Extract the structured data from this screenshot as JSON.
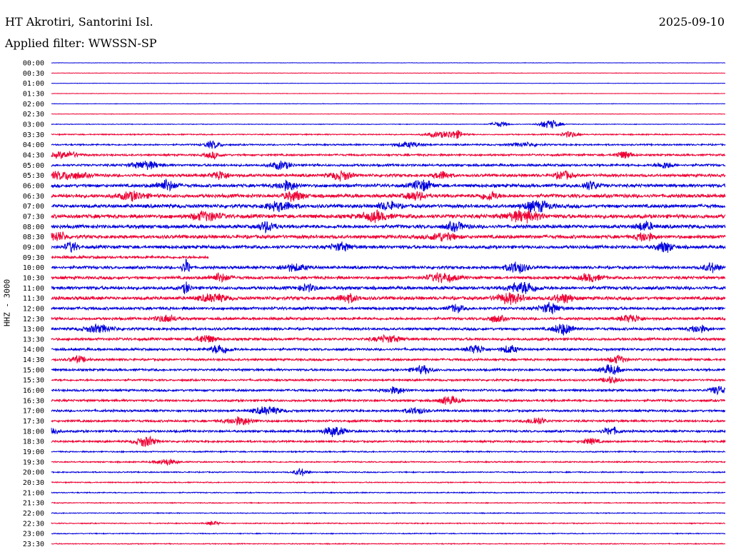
{
  "header": {
    "station": "HT Akrotiri, Santorini Isl.",
    "date": "2025-09-10",
    "filter": "Applied filter: WWSSN-SP"
  },
  "channel_label": "HHZ - 3000",
  "chart_data": {
    "type": "line",
    "title": "HT Akrotiri, Santorini Isl.",
    "ylabel": "HHZ - 3000",
    "colors": [
      "#0000dd",
      "#ee0033"
    ],
    "gap": {
      "start": "09:37",
      "end": "10:00"
    },
    "rows": [
      {
        "label": "00:00",
        "amp": 0.3,
        "events": []
      },
      {
        "label": "00:30",
        "amp": 0.35,
        "events": []
      },
      {
        "label": "01:00",
        "amp": 0.3,
        "events": []
      },
      {
        "label": "01:30",
        "amp": 0.35,
        "events": []
      },
      {
        "label": "02:00",
        "amp": 0.35,
        "events": []
      },
      {
        "label": "02:30",
        "amp": 0.35,
        "events": []
      },
      {
        "label": "03:00",
        "amp": 0.5,
        "events": [
          {
            "t": 0.665,
            "a": 4,
            "w": 0.012
          },
          {
            "t": 0.74,
            "a": 7,
            "w": 0.015
          }
        ]
      },
      {
        "label": "03:30",
        "amp": 0.9,
        "events": [
          {
            "t": 0.575,
            "a": 4,
            "w": 0.02
          },
          {
            "t": 0.6,
            "a": 6,
            "w": 0.012
          },
          {
            "t": 0.77,
            "a": 5,
            "w": 0.012
          }
        ]
      },
      {
        "label": "04:00",
        "amp": 1.2,
        "events": [
          {
            "t": 0.24,
            "a": 6,
            "w": 0.012
          },
          {
            "t": 0.53,
            "a": 4,
            "w": 0.02
          },
          {
            "t": 0.7,
            "a": 3,
            "w": 0.02
          }
        ]
      },
      {
        "label": "04:30",
        "amp": 1.5,
        "events": [
          {
            "t": 0.02,
            "a": 5,
            "w": 0.02
          },
          {
            "t": 0.24,
            "a": 5,
            "w": 0.012
          },
          {
            "t": 0.85,
            "a": 6,
            "w": 0.012
          }
        ]
      },
      {
        "label": "05:00",
        "amp": 1.8,
        "events": [
          {
            "t": 0.14,
            "a": 6,
            "w": 0.02
          },
          {
            "t": 0.34,
            "a": 6,
            "w": 0.015
          },
          {
            "t": 0.91,
            "a": 5,
            "w": 0.012
          }
        ]
      },
      {
        "label": "05:30",
        "amp": 2.2,
        "events": [
          {
            "t": 0.02,
            "a": 6,
            "w": 0.03
          },
          {
            "t": 0.25,
            "a": 7,
            "w": 0.012
          },
          {
            "t": 0.43,
            "a": 7,
            "w": 0.015
          },
          {
            "t": 0.58,
            "a": 6,
            "w": 0.012
          },
          {
            "t": 0.76,
            "a": 6,
            "w": 0.012
          }
        ]
      },
      {
        "label": "06:00",
        "amp": 2.5,
        "events": [
          {
            "t": 0.17,
            "a": 8,
            "w": 0.015
          },
          {
            "t": 0.35,
            "a": 7,
            "w": 0.015
          },
          {
            "t": 0.55,
            "a": 8,
            "w": 0.015
          },
          {
            "t": 0.8,
            "a": 7,
            "w": 0.012
          }
        ]
      },
      {
        "label": "06:30",
        "amp": 2.7,
        "events": [
          {
            "t": 0.12,
            "a": 6,
            "w": 0.02
          },
          {
            "t": 0.36,
            "a": 7,
            "w": 0.015
          },
          {
            "t": 0.54,
            "a": 6,
            "w": 0.015
          },
          {
            "t": 0.65,
            "a": 7,
            "w": 0.012
          }
        ]
      },
      {
        "label": "07:00",
        "amp": 2.7,
        "events": [
          {
            "t": 0.34,
            "a": 7,
            "w": 0.02
          },
          {
            "t": 0.5,
            "a": 6,
            "w": 0.015
          },
          {
            "t": 0.72,
            "a": 8,
            "w": 0.02
          }
        ]
      },
      {
        "label": "07:30",
        "amp": 3.0,
        "events": [
          {
            "t": 0.23,
            "a": 7,
            "w": 0.02
          },
          {
            "t": 0.48,
            "a": 7,
            "w": 0.02
          },
          {
            "t": 0.7,
            "a": 8,
            "w": 0.025
          }
        ]
      },
      {
        "label": "08:00",
        "amp": 2.7,
        "events": [
          {
            "t": 0.32,
            "a": 8,
            "w": 0.012
          },
          {
            "t": 0.6,
            "a": 6,
            "w": 0.015
          },
          {
            "t": 0.88,
            "a": 7,
            "w": 0.012
          }
        ]
      },
      {
        "label": "08:30",
        "amp": 2.7,
        "events": [
          {
            "t": 0.01,
            "a": 7,
            "w": 0.012
          },
          {
            "t": 0.58,
            "a": 6,
            "w": 0.02
          },
          {
            "t": 0.88,
            "a": 7,
            "w": 0.012
          }
        ]
      },
      {
        "label": "09:00",
        "amp": 2.5,
        "events": [
          {
            "t": 0.03,
            "a": 8,
            "w": 0.008
          },
          {
            "t": 0.43,
            "a": 6,
            "w": 0.015
          },
          {
            "t": 0.91,
            "a": 8,
            "w": 0.012
          }
        ]
      },
      {
        "label": "09:30",
        "amp": 2.0,
        "events": []
      },
      {
        "label": "10:00",
        "amp": 2.2,
        "events": [
          {
            "t": 0.2,
            "a": 12,
            "w": 0.006
          },
          {
            "t": 0.36,
            "a": 5,
            "w": 0.02
          },
          {
            "t": 0.69,
            "a": 9,
            "w": 0.015
          },
          {
            "t": 0.98,
            "a": 7,
            "w": 0.012
          }
        ]
      },
      {
        "label": "10:30",
        "amp": 2.2,
        "events": [
          {
            "t": 0.25,
            "a": 6,
            "w": 0.015
          },
          {
            "t": 0.58,
            "a": 7,
            "w": 0.02
          },
          {
            "t": 0.8,
            "a": 6,
            "w": 0.015
          }
        ]
      },
      {
        "label": "11:00",
        "amp": 2.5,
        "events": [
          {
            "t": 0.2,
            "a": 8,
            "w": 0.006
          },
          {
            "t": 0.38,
            "a": 5,
            "w": 0.015
          },
          {
            "t": 0.7,
            "a": 9,
            "w": 0.02
          }
        ]
      },
      {
        "label": "11:30",
        "amp": 2.5,
        "events": [
          {
            "t": 0.24,
            "a": 6,
            "w": 0.02
          },
          {
            "t": 0.44,
            "a": 6,
            "w": 0.015
          },
          {
            "t": 0.68,
            "a": 8,
            "w": 0.02
          },
          {
            "t": 0.76,
            "a": 7,
            "w": 0.015
          }
        ]
      },
      {
        "label": "12:00",
        "amp": 2.2,
        "events": [
          {
            "t": 0.6,
            "a": 6,
            "w": 0.01
          },
          {
            "t": 0.74,
            "a": 8,
            "w": 0.015
          }
        ]
      },
      {
        "label": "12:30",
        "amp": 2.0,
        "events": [
          {
            "t": 0.17,
            "a": 6,
            "w": 0.015
          },
          {
            "t": 0.66,
            "a": 5,
            "w": 0.012
          },
          {
            "t": 0.86,
            "a": 6,
            "w": 0.015
          }
        ]
      },
      {
        "label": "13:00",
        "amp": 2.0,
        "events": [
          {
            "t": 0.07,
            "a": 6,
            "w": 0.02
          },
          {
            "t": 0.76,
            "a": 9,
            "w": 0.015
          },
          {
            "t": 0.96,
            "a": 6,
            "w": 0.012
          }
        ]
      },
      {
        "label": "13:30",
        "amp": 2.0,
        "events": [
          {
            "t": 0.23,
            "a": 6,
            "w": 0.015
          },
          {
            "t": 0.5,
            "a": 5,
            "w": 0.02
          }
        ]
      },
      {
        "label": "14:00",
        "amp": 1.8,
        "events": [
          {
            "t": 0.25,
            "a": 7,
            "w": 0.015
          },
          {
            "t": 0.63,
            "a": 7,
            "w": 0.012
          },
          {
            "t": 0.68,
            "a": 6,
            "w": 0.012
          }
        ]
      },
      {
        "label": "14:30",
        "amp": 1.7,
        "events": [
          {
            "t": 0.04,
            "a": 5,
            "w": 0.012
          },
          {
            "t": 0.84,
            "a": 6,
            "w": 0.012
          }
        ]
      },
      {
        "label": "15:00",
        "amp": 1.7,
        "events": [
          {
            "t": 0.55,
            "a": 6,
            "w": 0.015
          },
          {
            "t": 0.83,
            "a": 7,
            "w": 0.015
          }
        ]
      },
      {
        "label": "15:30",
        "amp": 1.5,
        "events": [
          {
            "t": 0.83,
            "a": 5,
            "w": 0.012
          }
        ]
      },
      {
        "label": "16:00",
        "amp": 1.7,
        "events": [
          {
            "t": 0.51,
            "a": 5,
            "w": 0.015
          },
          {
            "t": 0.99,
            "a": 7,
            "w": 0.012
          }
        ]
      },
      {
        "label": "16:30",
        "amp": 1.7,
        "events": [
          {
            "t": 0.59,
            "a": 6,
            "w": 0.015
          }
        ]
      },
      {
        "label": "17:00",
        "amp": 1.7,
        "events": [
          {
            "t": 0.32,
            "a": 6,
            "w": 0.02
          },
          {
            "t": 0.54,
            "a": 5,
            "w": 0.015
          }
        ]
      },
      {
        "label": "17:30",
        "amp": 1.7,
        "events": [
          {
            "t": 0.28,
            "a": 6,
            "w": 0.02
          },
          {
            "t": 0.72,
            "a": 6,
            "w": 0.012
          }
        ]
      },
      {
        "label": "18:00",
        "amp": 1.7,
        "events": [
          {
            "t": 0.0,
            "a": 7,
            "w": 0.01
          },
          {
            "t": 0.42,
            "a": 8,
            "w": 0.015
          },
          {
            "t": 0.83,
            "a": 6,
            "w": 0.012
          }
        ]
      },
      {
        "label": "18:30",
        "amp": 1.5,
        "events": [
          {
            "t": 0.14,
            "a": 8,
            "w": 0.015
          },
          {
            "t": 0.8,
            "a": 5,
            "w": 0.012
          }
        ]
      },
      {
        "label": "19:00",
        "amp": 1.0,
        "events": []
      },
      {
        "label": "19:30",
        "amp": 1.0,
        "events": [
          {
            "t": 0.17,
            "a": 5,
            "w": 0.015
          }
        ]
      },
      {
        "label": "20:00",
        "amp": 0.9,
        "events": [
          {
            "t": 0.37,
            "a": 6,
            "w": 0.01
          }
        ]
      },
      {
        "label": "20:30",
        "amp": 0.8,
        "events": []
      },
      {
        "label": "21:00",
        "amp": 0.8,
        "events": []
      },
      {
        "label": "21:30",
        "amp": 0.7,
        "events": []
      },
      {
        "label": "22:00",
        "amp": 0.7,
        "events": []
      },
      {
        "label": "22:30",
        "amp": 0.8,
        "events": [
          {
            "t": 0.24,
            "a": 3,
            "w": 0.01
          }
        ]
      },
      {
        "label": "23:00",
        "amp": 0.7,
        "events": []
      },
      {
        "label": "23:30",
        "amp": 0.7,
        "events": []
      }
    ]
  }
}
